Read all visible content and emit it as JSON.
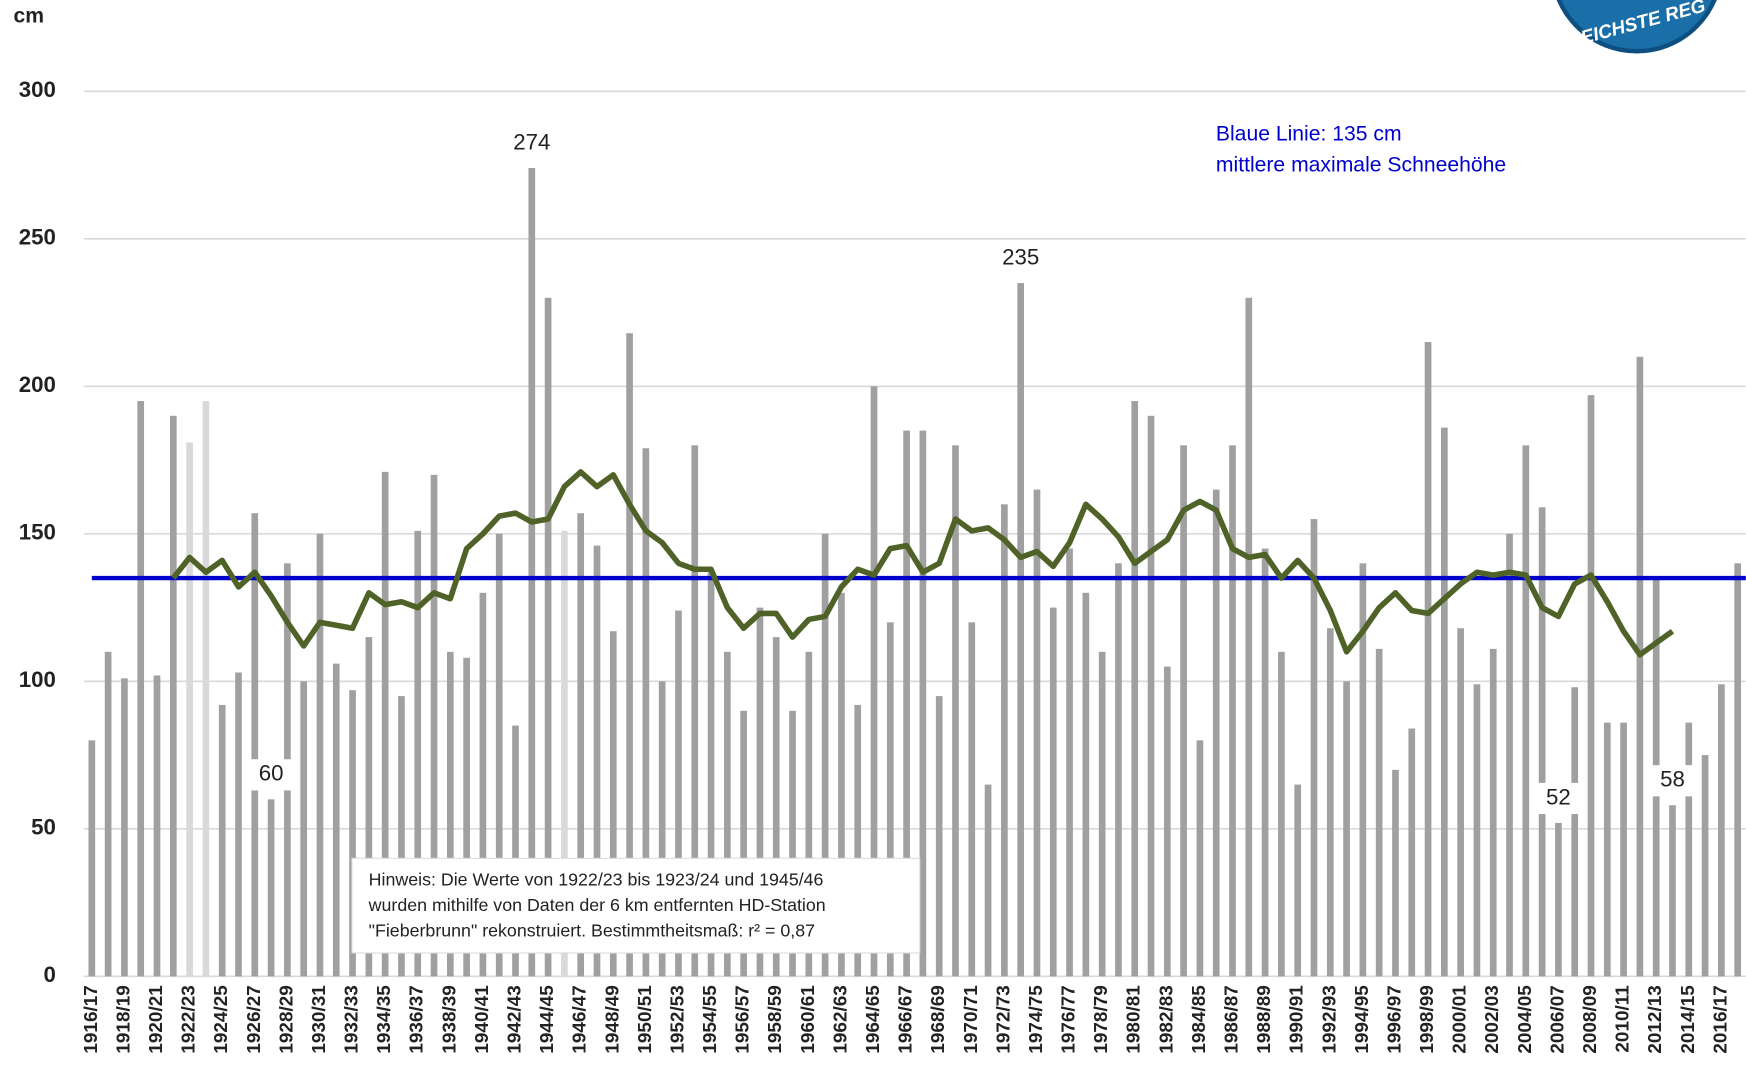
{
  "chart_data": {
    "type": "bar",
    "y_axis_label": "cm",
    "logo_text": "REICHSTE REG",
    "categories": [
      "1916/17",
      null,
      "1918/19",
      null,
      "1920/21",
      null,
      "1922/23",
      null,
      "1924/25",
      null,
      "1926/27",
      null,
      "1928/29",
      null,
      "1930/31",
      null,
      "1932/33",
      null,
      "1934/35",
      null,
      "1936/37",
      null,
      "1938/39",
      null,
      "1940/41",
      null,
      "1942/43",
      null,
      "1944/45",
      null,
      "1946/47",
      null,
      "1948/49",
      null,
      "1950/51",
      null,
      "1952/53",
      null,
      "1954/55",
      null,
      "1956/57",
      null,
      "1958/59",
      null,
      "1960/61",
      null,
      "1962/63",
      null,
      "1964/65",
      null,
      "1966/67",
      null,
      "1968/69",
      null,
      "1970/71",
      null,
      "1972/73",
      null,
      "1974/75",
      null,
      "1976/77",
      null,
      "1978/79",
      null,
      "1980/81",
      null,
      "1982/83",
      null,
      "1984/85",
      null,
      "1986/87",
      null,
      "1988/89",
      null,
      "1990/91",
      null,
      "1992/93",
      null,
      "1994/95",
      null,
      "1996/97",
      null,
      "1998/99",
      null,
      "2000/01",
      null,
      "2002/03",
      null,
      "2004/05",
      null,
      "2006/07",
      null,
      "2008/09",
      null,
      "2010/11",
      null,
      "2012/13",
      null,
      "2014/15",
      null,
      "2016/17",
      null
    ],
    "series": [
      {
        "type": "bar",
        "values": [
          80,
          110,
          101,
          195,
          102,
          190,
          181,
          195,
          92,
          103,
          157,
          60,
          140,
          100,
          150,
          106,
          97,
          115,
          171,
          95,
          151,
          170,
          110,
          108,
          130,
          150,
          85,
          274,
          230,
          151,
          157,
          146,
          117,
          218,
          179,
          100,
          124,
          180,
          137,
          110,
          90,
          125,
          115,
          90,
          110,
          150,
          130,
          92,
          200,
          120,
          185,
          185,
          95,
          180,
          120,
          65,
          160,
          235,
          165,
          125,
          145,
          130,
          110,
          140,
          195,
          190,
          105,
          180,
          80,
          165,
          180,
          230,
          145,
          110,
          65,
          155,
          118,
          100,
          140,
          111,
          70,
          84,
          215,
          186,
          118,
          99,
          111,
          150,
          180,
          159,
          52,
          98,
          197,
          86,
          86,
          210,
          135,
          58,
          86,
          75,
          99,
          140
        ],
        "colors": [
          "#a0a0a0",
          "#a0a0a0",
          "#a0a0a0",
          "#a0a0a0",
          "#a0a0a0",
          "#a0a0a0",
          "#d9d9d9",
          "#d9d9d9",
          "#a0a0a0",
          "#a0a0a0",
          "#a0a0a0",
          "#a0a0a0",
          "#a0a0a0",
          "#a0a0a0",
          "#a0a0a0",
          "#a0a0a0",
          "#a0a0a0",
          "#a0a0a0",
          "#a0a0a0",
          "#a0a0a0",
          "#a0a0a0",
          "#a0a0a0",
          "#a0a0a0",
          "#a0a0a0",
          "#a0a0a0",
          "#a0a0a0",
          "#a0a0a0",
          "#a0a0a0",
          "#a0a0a0",
          "#d9d9d9",
          "#a0a0a0",
          "#a0a0a0",
          "#a0a0a0",
          "#a0a0a0",
          "#a0a0a0",
          "#a0a0a0",
          "#a0a0a0",
          "#a0a0a0",
          "#a0a0a0",
          "#a0a0a0",
          "#a0a0a0",
          "#a0a0a0",
          "#a0a0a0",
          "#a0a0a0",
          "#a0a0a0",
          "#a0a0a0",
          "#a0a0a0",
          "#a0a0a0",
          "#a0a0a0",
          "#a0a0a0",
          "#a0a0a0",
          "#a0a0a0",
          "#a0a0a0",
          "#a0a0a0",
          "#a0a0a0",
          "#a0a0a0",
          "#a0a0a0",
          "#a0a0a0",
          "#a0a0a0",
          "#a0a0a0",
          "#a0a0a0",
          "#a0a0a0",
          "#a0a0a0",
          "#a0a0a0",
          "#a0a0a0",
          "#a0a0a0",
          "#a0a0a0",
          "#a0a0a0",
          "#a0a0a0",
          "#a0a0a0",
          "#a0a0a0",
          "#a0a0a0",
          "#a0a0a0",
          "#a0a0a0",
          "#a0a0a0",
          "#a0a0a0",
          "#a0a0a0",
          "#a0a0a0",
          "#a0a0a0",
          "#a0a0a0",
          "#a0a0a0",
          "#a0a0a0",
          "#a0a0a0",
          "#a0a0a0",
          "#a0a0a0",
          "#a0a0a0",
          "#a0a0a0",
          "#a0a0a0",
          "#a0a0a0",
          "#a0a0a0",
          "#a0a0a0",
          "#a0a0a0",
          "#a0a0a0",
          "#a0a0a0",
          "#a0a0a0",
          "#a0a0a0",
          "#a0a0a0",
          "#a0a0a0",
          "#a0a0a0",
          "#a0a0a0",
          "#a0a0a0",
          "#a0a0a0"
        ],
        "value_labels": [
          null,
          null,
          null,
          null,
          null,
          null,
          null,
          null,
          null,
          null,
          null,
          "60",
          null,
          null,
          null,
          null,
          null,
          null,
          null,
          null,
          null,
          null,
          null,
          null,
          null,
          null,
          null,
          "274",
          null,
          null,
          null,
          null,
          null,
          null,
          null,
          null,
          null,
          null,
          null,
          null,
          null,
          null,
          null,
          null,
          null,
          null,
          null,
          null,
          null,
          null,
          null,
          null,
          null,
          null,
          null,
          null,
          null,
          "235",
          null,
          null,
          null,
          null,
          null,
          null,
          null,
          null,
          null,
          null,
          null,
          null,
          null,
          null,
          null,
          null,
          null,
          null,
          null,
          null,
          null,
          null,
          null,
          null,
          null,
          null,
          null,
          null,
          null,
          null,
          null,
          null,
          "52",
          null,
          null,
          null,
          null,
          null,
          null,
          "58",
          null,
          null,
          null,
          null
        ]
      },
      {
        "type": "line",
        "color": "#4f6228",
        "values": [
          null,
          null,
          null,
          null,
          null,
          135,
          142,
          137,
          141,
          132,
          137,
          129,
          120,
          112,
          120,
          119,
          118,
          130,
          126,
          127,
          125,
          130,
          128,
          145,
          150,
          156,
          157,
          154,
          155,
          166,
          171,
          166,
          170,
          160,
          151,
          147,
          140,
          138,
          138,
          125,
          118,
          123,
          123,
          115,
          121,
          122,
          132,
          138,
          136,
          145,
          146,
          137,
          140,
          155,
          151,
          152,
          148,
          142,
          144,
          139,
          147,
          160,
          155,
          149,
          140,
          144,
          148,
          158,
          161,
          158,
          145,
          142,
          143,
          135,
          141,
          135,
          124,
          110,
          117,
          125,
          130,
          124,
          123,
          128,
          133,
          137,
          136,
          137,
          136,
          125,
          122,
          133,
          136,
          127,
          117,
          109,
          113,
          117,
          null,
          null,
          null,
          null
        ]
      }
    ],
    "reference_line": 135,
    "reference_color": "#0000cc",
    "annotation_blue": [
      "Blaue Linie: 135 cm",
      "mittlere maximale Schneehöhe"
    ],
    "note": [
      "Hinweis: Die Werte von 1922/23 bis 1923/24 und 1945/46",
      "wurden mithilfe von Daten der 6 km entfernten HD-Station",
      "\"Fieberbrunn\" rekonstruiert. Bestimmtheitsmaß: r² = 0,87"
    ],
    "ylim": [
      0,
      300
    ],
    "yticks": [
      0,
      50,
      100,
      150,
      200,
      250,
      300
    ],
    "grid": true
  }
}
